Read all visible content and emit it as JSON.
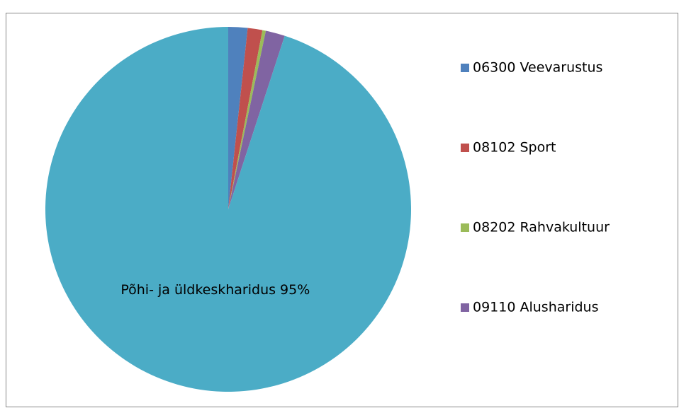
{
  "chart_data": {
    "type": "pie",
    "categories": [
      "06300 Veevarustus",
      "08102 Sport",
      "08202 Rahvakultuur",
      "09110 Alusharidus",
      null
    ],
    "values": [
      1.7,
      1.3,
      0.3,
      1.7,
      95
    ],
    "value_labels": [
      null,
      null,
      null,
      null,
      "Põhi- ja üldkeskharidus 95%"
    ],
    "colors": [
      "#4f81bd",
      "#c0504d",
      "#9bbb59",
      "#8064a2",
      "#4bacc6"
    ],
    "legend": "right"
  }
}
